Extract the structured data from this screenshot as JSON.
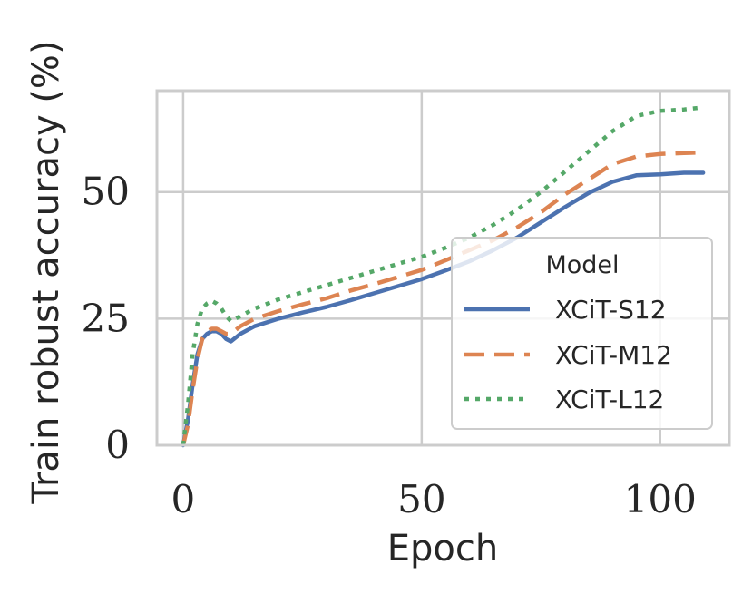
{
  "chart_data": {
    "type": "line",
    "title": "",
    "xlabel": "Epoch",
    "ylabel": "Train robust accuracy (%)",
    "xlim": [
      -5.5,
      114.5
    ],
    "ylim": [
      0,
      70
    ],
    "xticks": [
      0,
      50,
      100
    ],
    "yticks": [
      0,
      25,
      50
    ],
    "xtick_labels": [
      "0",
      "50",
      "100"
    ],
    "ytick_labels": [
      "0",
      "25",
      "50"
    ],
    "grid": true,
    "legend": {
      "title": "Model",
      "position": "lower-right"
    },
    "series": [
      {
        "name": "XCiT-S12",
        "color": "#4c72b0",
        "style": "solid",
        "x": [
          0,
          1,
          2,
          3,
          4,
          5,
          6,
          7,
          8,
          9,
          10,
          12,
          15,
          20,
          25,
          30,
          35,
          40,
          45,
          50,
          55,
          60,
          65,
          70,
          75,
          80,
          85,
          90,
          95,
          100,
          105,
          109
        ],
        "y": [
          0,
          5,
          12,
          18,
          21,
          22,
          22.5,
          22.5,
          22,
          21,
          20.5,
          22,
          23.5,
          25,
          26.2,
          27.3,
          28.6,
          30,
          31.4,
          32.8,
          34.5,
          36.3,
          38.5,
          41,
          44,
          47,
          49.8,
          52,
          53.3,
          53.5,
          53.8,
          53.8
        ]
      },
      {
        "name": "XCiT-M12",
        "color": "#dd8452",
        "style": "dashed",
        "x": [
          0,
          1,
          2,
          3,
          4,
          5,
          6,
          7,
          8,
          9,
          10,
          12,
          15,
          20,
          25,
          30,
          35,
          40,
          45,
          50,
          55,
          60,
          65,
          70,
          75,
          80,
          85,
          90,
          95,
          100,
          105,
          109
        ],
        "y": [
          0,
          4,
          11,
          17,
          21,
          22.5,
          23,
          23,
          22.5,
          22,
          22,
          23.5,
          25,
          26.5,
          27.8,
          29,
          30.5,
          31.8,
          33.2,
          34.6,
          36.5,
          38.5,
          40.5,
          43,
          46,
          49.5,
          52.5,
          55.5,
          57,
          57.5,
          57.7,
          57.8
        ]
      },
      {
        "name": "XCiT-L12",
        "color": "#55a868",
        "style": "dotted",
        "x": [
          0,
          1,
          2,
          3,
          4,
          5,
          6,
          7,
          8,
          9,
          10,
          12,
          15,
          20,
          25,
          30,
          35,
          40,
          45,
          50,
          55,
          60,
          65,
          70,
          75,
          80,
          85,
          90,
          95,
          100,
          105,
          109
        ],
        "y": [
          0,
          8,
          18,
          24,
          27,
          28,
          28.5,
          28,
          27,
          25.5,
          24.5,
          25.5,
          27,
          28.8,
          30.2,
          31.6,
          33,
          34.4,
          35.8,
          37.2,
          39,
          41,
          43.5,
          46.5,
          50,
          54,
          58,
          62,
          65,
          66,
          66.3,
          66.7
        ]
      }
    ]
  }
}
